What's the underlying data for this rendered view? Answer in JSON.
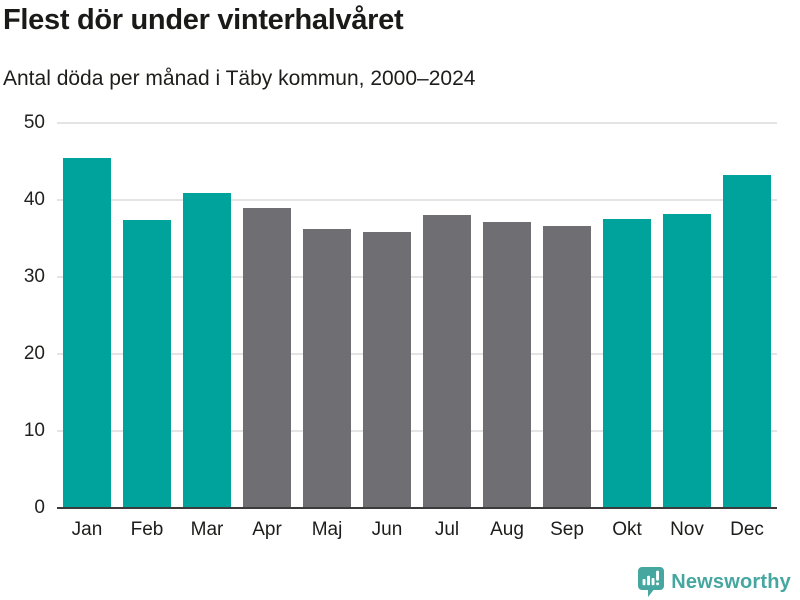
{
  "header": {
    "title": "Flest dör under vinterhalvåret",
    "subtitle": "Antal döda per månad i Täby kommun, 2000–2024"
  },
  "chart_data": {
    "type": "bar",
    "title": "Flest dör under vinterhalvåret",
    "subtitle": "Antal döda per månad i Täby kommun, 2000–2024",
    "categories": [
      "Jan",
      "Feb",
      "Mar",
      "Apr",
      "Maj",
      "Jun",
      "Jul",
      "Aug",
      "Sep",
      "Okt",
      "Nov",
      "Dec"
    ],
    "values": [
      45.4,
      37.4,
      40.9,
      38.9,
      36.3,
      35.9,
      38.1,
      37.2,
      36.6,
      37.5,
      38.2,
      43.3
    ],
    "bar_colors": [
      "teal",
      "teal",
      "teal",
      "gray",
      "gray",
      "gray",
      "gray",
      "gray",
      "gray",
      "teal",
      "teal",
      "teal"
    ],
    "palette": {
      "teal": "#00a39b",
      "gray": "#6e6e73"
    },
    "xlabel": "",
    "ylabel": "",
    "ylim": [
      0,
      50
    ],
    "yticks": [
      0,
      10,
      20,
      30,
      40,
      50
    ],
    "grid": true,
    "gridline_color": "#e4e4e4",
    "axis_line_color": "#3b3b3b",
    "legend": "none"
  },
  "footer": {
    "brand": "Newsworthy",
    "brand_color": "#45a7a0",
    "logo_icon": "bar-chart-speech-bubble-icon"
  }
}
